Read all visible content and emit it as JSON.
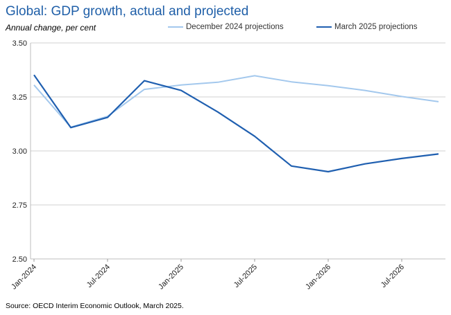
{
  "chart_data": {
    "type": "line",
    "title": "Global: GDP growth, actual and projected",
    "subtitle": "Annual change, per cent",
    "source": "Source: OECD Interim  Economic Outlook, March 2025.",
    "x": [
      "Jan-2024",
      "Apr-2024",
      "Jul-2024",
      "Oct-2024",
      "Jan-2025",
      "Apr-2025",
      "Jul-2025",
      "Oct-2025",
      "Jan-2026",
      "Apr-2026",
      "Jul-2026",
      "Oct-2026"
    ],
    "x_tick_labels": [
      "Jan-2024",
      "Jul-2024",
      "Jan-2025",
      "Jul-2025",
      "Jan-2026",
      "Jul-2026"
    ],
    "ylim": [
      2.5,
      3.5
    ],
    "y_ticks": [
      "2.50",
      "2.75",
      "3.00",
      "3.25",
      "3.50"
    ],
    "grid": true,
    "legend_position": "top",
    "series": [
      {
        "name": "December 2024 projections",
        "color": "#a3c8ed",
        "values": [
          3.305,
          3.11,
          3.16,
          3.285,
          3.305,
          3.318,
          3.348,
          3.32,
          3.302,
          3.28,
          3.252,
          3.228
        ]
      },
      {
        "name": "March 2025 projections",
        "color": "#1f5fb0",
        "values": [
          3.352,
          3.108,
          3.155,
          3.325,
          3.28,
          3.18,
          3.068,
          2.93,
          2.904,
          2.94,
          2.965,
          2.986
        ]
      }
    ]
  }
}
